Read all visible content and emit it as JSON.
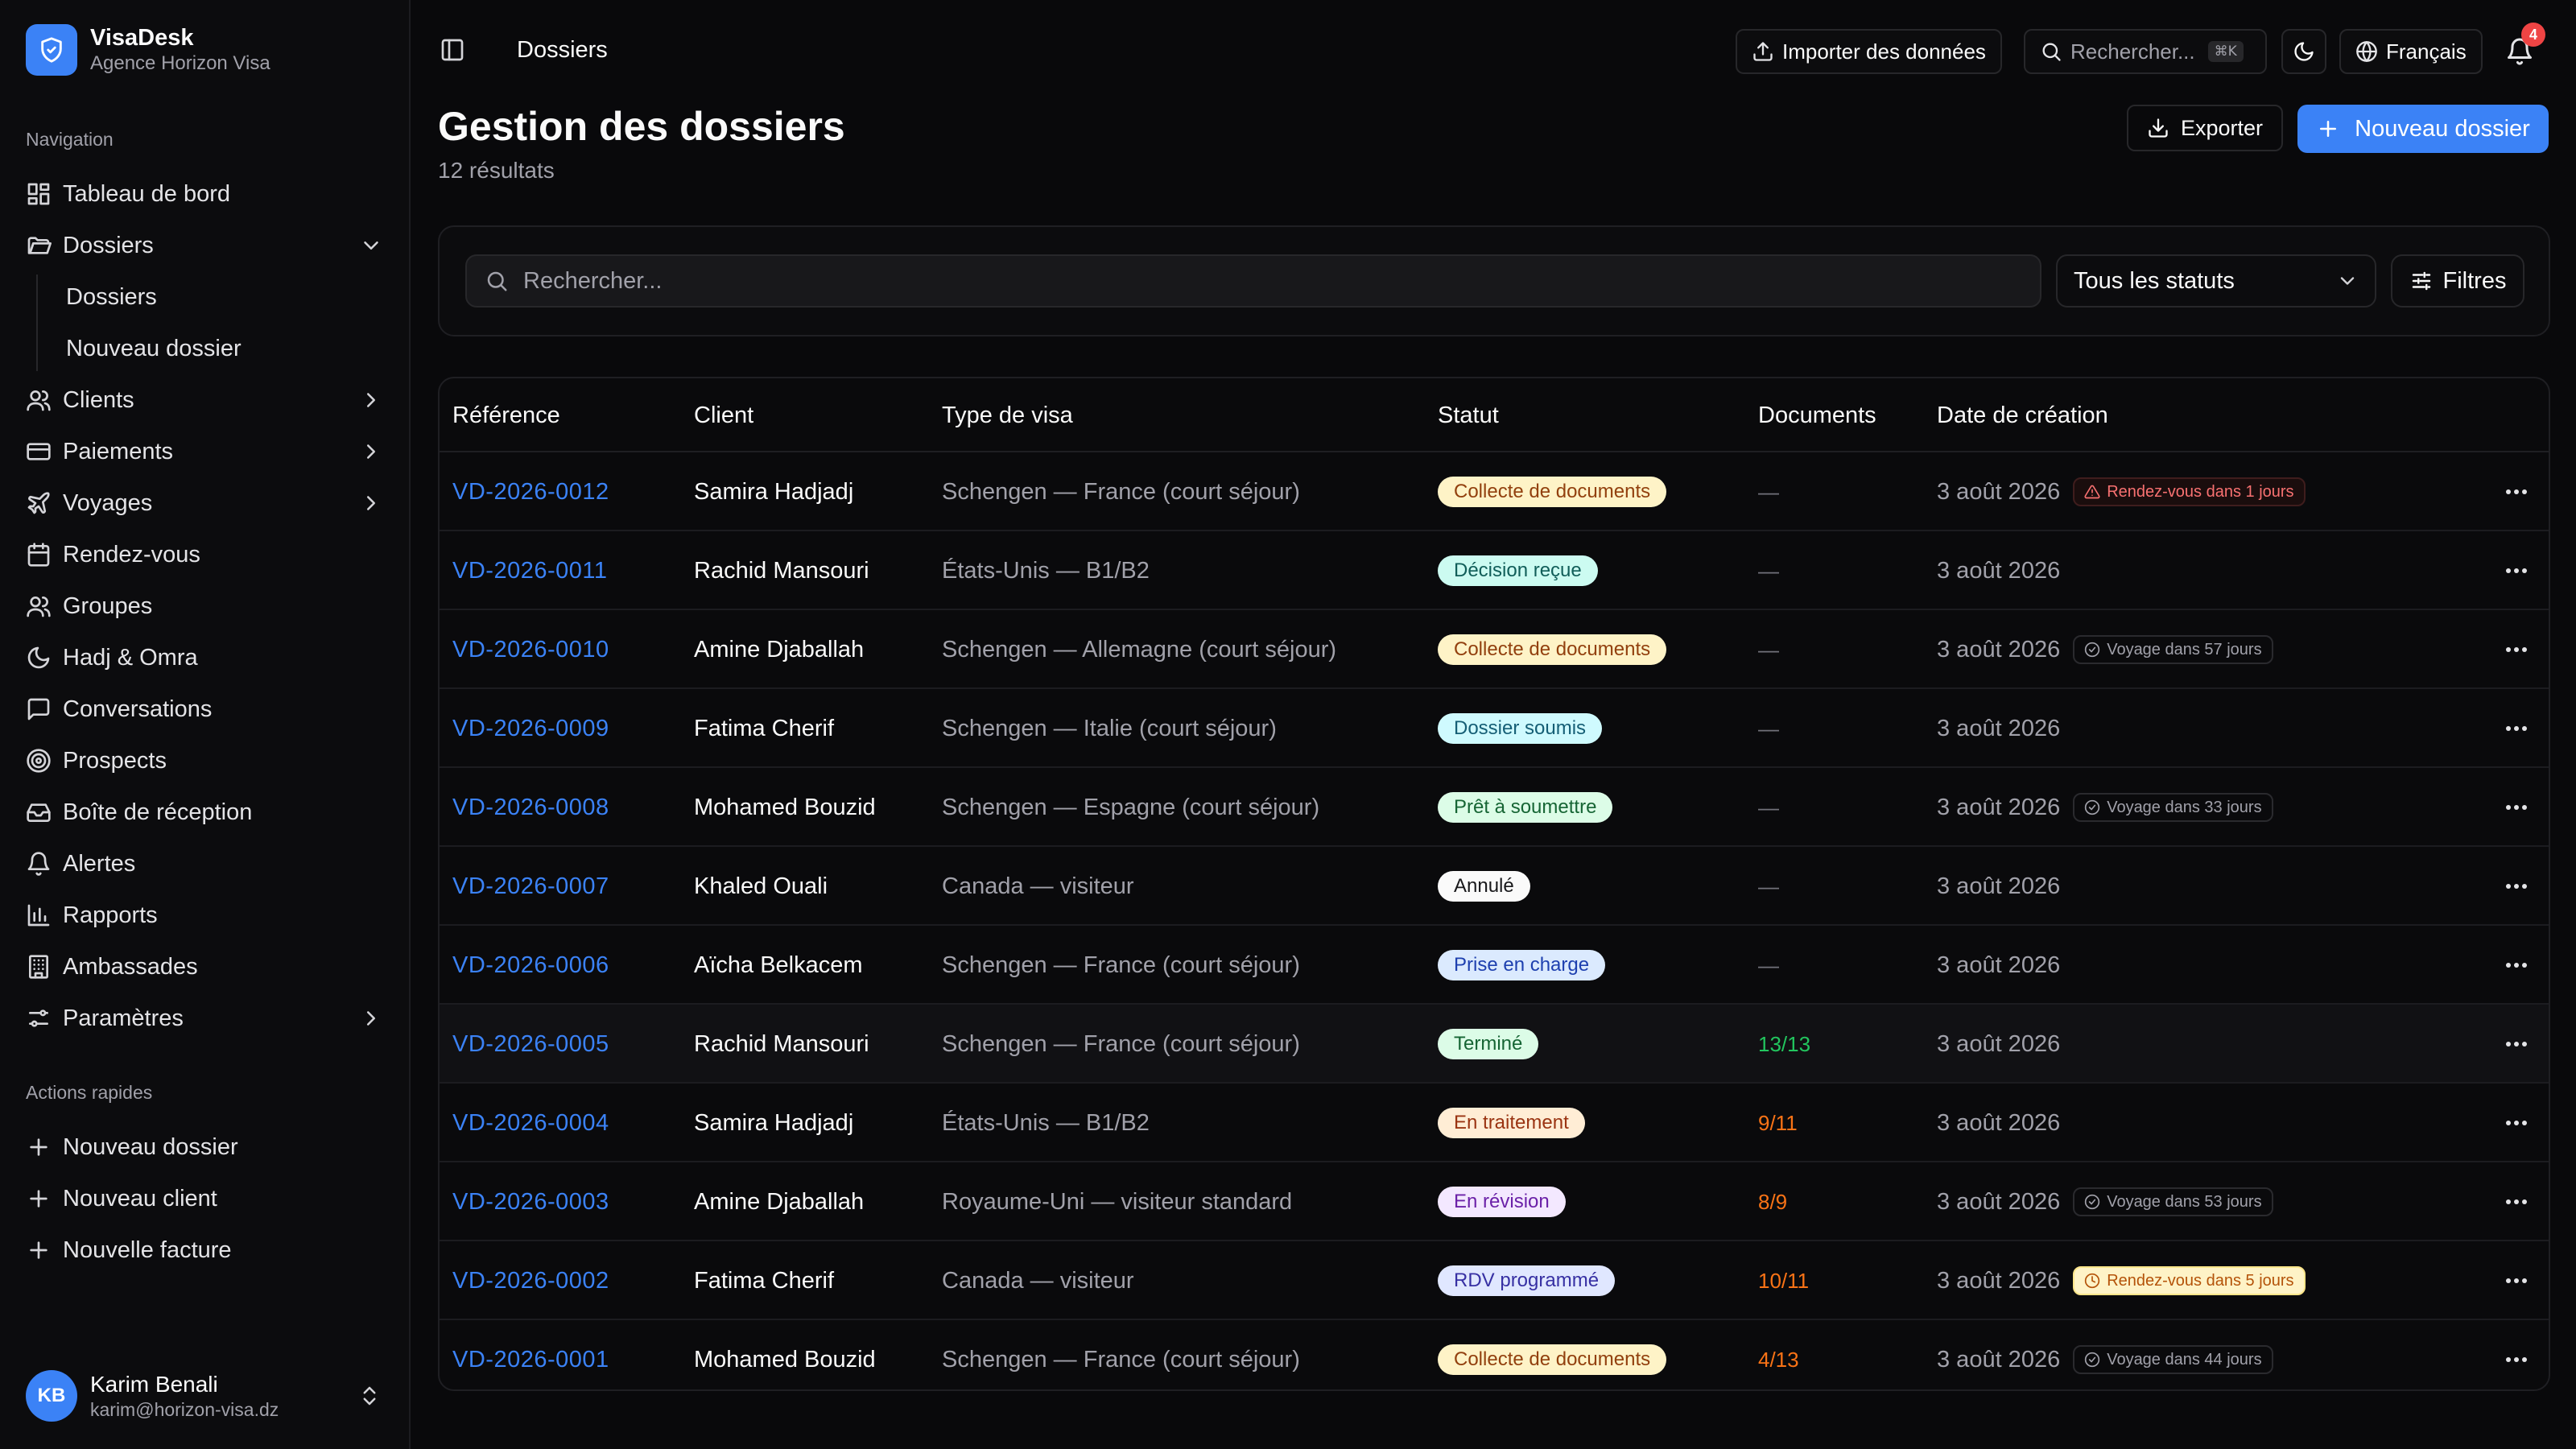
{
  "brand": {
    "name": "VisaDesk",
    "subtitle": "Agence Horizon Visa"
  },
  "sidebar": {
    "nav_heading": "Navigation",
    "items": [
      {
        "label": "Tableau de bord",
        "icon": "dashboard-icon"
      },
      {
        "label": "Dossiers",
        "icon": "folder-open-icon",
        "expanded": true,
        "children": [
          "Dossiers",
          "Nouveau dossier"
        ]
      },
      {
        "label": "Clients",
        "icon": "users-icon",
        "has_children": true
      },
      {
        "label": "Paiements",
        "icon": "credit-card-icon",
        "has_children": true
      },
      {
        "label": "Voyages",
        "icon": "plane-icon",
        "has_children": true
      },
      {
        "label": "Rendez-vous",
        "icon": "calendar-icon"
      },
      {
        "label": "Groupes",
        "icon": "users-icon"
      },
      {
        "label": "Hadj & Omra",
        "icon": "moon-icon"
      },
      {
        "label": "Conversations",
        "icon": "message-icon"
      },
      {
        "label": "Prospects",
        "icon": "target-icon"
      },
      {
        "label": "Boîte de réception",
        "icon": "inbox-icon"
      },
      {
        "label": "Alertes",
        "icon": "bell-icon"
      },
      {
        "label": "Rapports",
        "icon": "bar-chart-icon"
      },
      {
        "label": "Ambassades",
        "icon": "building-icon"
      },
      {
        "label": "Paramètres",
        "icon": "settings-icon",
        "has_children": true
      }
    ],
    "quick_heading": "Actions rapides",
    "quick_actions": [
      "Nouveau dossier",
      "Nouveau client",
      "Nouvelle facture"
    ]
  },
  "user": {
    "initials": "KB",
    "name": "Karim Benali",
    "email": "karim@horizon-visa.dz"
  },
  "topbar": {
    "breadcrumb": "Dossiers",
    "import_label": "Importer des données",
    "search_placeholder": "Rechercher...",
    "search_shortcut": "⌘K",
    "language": "Français",
    "notifications_count": "4"
  },
  "header": {
    "title": "Gestion des dossiers",
    "count": "12 résultats",
    "export_label": "Exporter",
    "new_label": "Nouveau dossier"
  },
  "filters": {
    "search_placeholder": "Rechercher...",
    "status_value": "Tous les statuts",
    "filters_label": "Filtres"
  },
  "table": {
    "columns": [
      "Référence",
      "Client",
      "Type de visa",
      "Statut",
      "Documents",
      "Date de création"
    ],
    "rows": [
      {
        "ref": "VD-2026-0012",
        "client": "Samira Hadjadj",
        "type": "Schengen — France (court séjour)",
        "status": "Collecte de documents",
        "status_kind": "amber",
        "docs": "—",
        "docs_kind": "none",
        "date": "3 août 2026",
        "tag": "Rendez-vous dans 1 jours",
        "tag_kind": "red"
      },
      {
        "ref": "VD-2026-0011",
        "client": "Rachid Mansouri",
        "type": "États-Unis — B1/B2",
        "status": "Décision reçue",
        "status_kind": "teal",
        "docs": "—",
        "docs_kind": "none",
        "date": "3 août 2026",
        "tag": "",
        "tag_kind": ""
      },
      {
        "ref": "VD-2026-0010",
        "client": "Amine Djaballah",
        "type": "Schengen — Allemagne (court séjour)",
        "status": "Collecte de documents",
        "status_kind": "amber",
        "docs": "—",
        "docs_kind": "none",
        "date": "3 août 2026",
        "tag": "Voyage dans 57 jours",
        "tag_kind": "neutral"
      },
      {
        "ref": "VD-2026-0009",
        "client": "Fatima Cherif",
        "type": "Schengen — Italie (court séjour)",
        "status": "Dossier soumis",
        "status_kind": "cyan",
        "docs": "—",
        "docs_kind": "none",
        "date": "3 août 2026",
        "tag": "",
        "tag_kind": ""
      },
      {
        "ref": "VD-2026-0008",
        "client": "Mohamed Bouzid",
        "type": "Schengen — Espagne (court séjour)",
        "status": "Prêt à soumettre",
        "status_kind": "green",
        "docs": "—",
        "docs_kind": "none",
        "date": "3 août 2026",
        "tag": "Voyage dans 33 jours",
        "tag_kind": "neutral"
      },
      {
        "ref": "VD-2026-0007",
        "client": "Khaled Ouali",
        "type": "Canada — visiteur",
        "status": "Annulé",
        "status_kind": "white",
        "docs": "—",
        "docs_kind": "none",
        "date": "3 août 2026",
        "tag": "",
        "tag_kind": ""
      },
      {
        "ref": "VD-2026-0006",
        "client": "Aïcha Belkacem",
        "type": "Schengen — France (court séjour)",
        "status": "Prise en charge",
        "status_kind": "blue",
        "docs": "—",
        "docs_kind": "none",
        "date": "3 août 2026",
        "tag": "",
        "tag_kind": ""
      },
      {
        "ref": "VD-2026-0005",
        "client": "Rachid Mansouri",
        "type": "Schengen — France (court séjour)",
        "status": "Terminé",
        "status_kind": "green",
        "docs": "13/13",
        "docs_kind": "green",
        "date": "3 août 2026",
        "tag": "",
        "tag_kind": ""
      },
      {
        "ref": "VD-2026-0004",
        "client": "Samira Hadjadj",
        "type": "États-Unis — B1/B2",
        "status": "En traitement",
        "status_kind": "orange",
        "docs": "9/11",
        "docs_kind": "orange",
        "date": "3 août 2026",
        "tag": "",
        "tag_kind": ""
      },
      {
        "ref": "VD-2026-0003",
        "client": "Amine Djaballah",
        "type": "Royaume-Uni — visiteur standard",
        "status": "En révision",
        "status_kind": "purple",
        "docs": "8/9",
        "docs_kind": "orange",
        "date": "3 août 2026",
        "tag": "Voyage dans 53 jours",
        "tag_kind": "neutral"
      },
      {
        "ref": "VD-2026-0002",
        "client": "Fatima Cherif",
        "type": "Canada — visiteur",
        "status": "RDV programmé",
        "status_kind": "indigo",
        "docs": "10/11",
        "docs_kind": "orange",
        "date": "3 août 2026",
        "tag": "Rendez-vous dans 5 jours",
        "tag_kind": "amber"
      },
      {
        "ref": "VD-2026-0001",
        "client": "Mohamed Bouzid",
        "type": "Schengen — France (court séjour)",
        "status": "Collecte de documents",
        "status_kind": "amber",
        "docs": "4/13",
        "docs_kind": "orange",
        "date": "3 août 2026",
        "tag": "Voyage dans 44 jours",
        "tag_kind": "neutral"
      }
    ]
  },
  "colors": {
    "accent": "#3b82f6",
    "background": "#09090b",
    "status": {
      "amber": [
        "#fef3c7",
        "#92400e"
      ],
      "teal": [
        "#ccfbf1",
        "#115e59"
      ],
      "cyan": [
        "#cffafe",
        "#155e75"
      ],
      "green": [
        "#dcfce7",
        "#166534"
      ],
      "white": [
        "#fafafa",
        "#18181b"
      ],
      "blue": [
        "#dbeafe",
        "#1e40af"
      ],
      "orange": [
        "#ffedd5",
        "#9a3412"
      ],
      "purple": [
        "#f3e8ff",
        "#6b21a8"
      ],
      "indigo": [
        "#e0e7ff",
        "#3730a3"
      ]
    },
    "docs": {
      "none": "#71717a",
      "green": "#22c55e",
      "orange": "#f97316"
    }
  }
}
